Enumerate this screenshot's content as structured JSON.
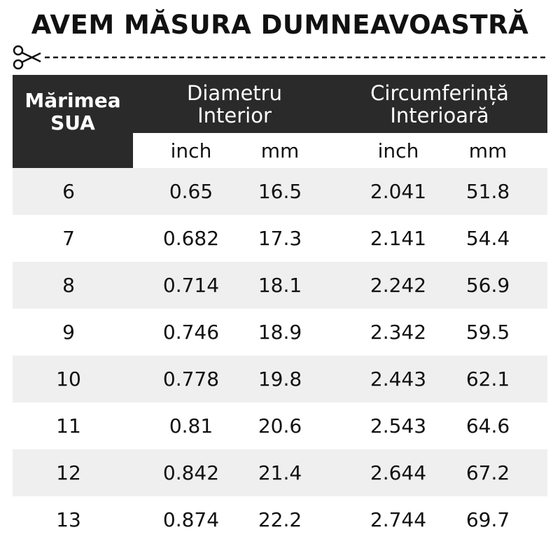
{
  "header": {
    "title": "AVEM MĂSURA DUMNEAVOASTRĂ"
  },
  "table": {
    "columns": {
      "size": "Mărimea SUA",
      "diameter": "Diametru Interior",
      "circumference": "Circumferință Interioară"
    },
    "units": [
      "inch",
      "mm",
      "inch",
      "mm"
    ],
    "rows": [
      [
        "6",
        "0.65",
        "16.5",
        "2.041",
        "51.8"
      ],
      [
        "7",
        "0.682",
        "17.3",
        "2.141",
        "54.4"
      ],
      [
        "8",
        "0.714",
        "18.1",
        "2.242",
        "56.9"
      ],
      [
        "9",
        "0.746",
        "18.9",
        "2.342",
        "59.5"
      ],
      [
        "10",
        "0.778",
        "19.8",
        "2.443",
        "62.1"
      ],
      [
        "11",
        "0.81",
        "20.6",
        "2.543",
        "64.6"
      ],
      [
        "12",
        "0.842",
        "21.4",
        "2.644",
        "67.2"
      ],
      [
        "13",
        "0.874",
        "22.2",
        "2.744",
        "69.7"
      ]
    ]
  }
}
